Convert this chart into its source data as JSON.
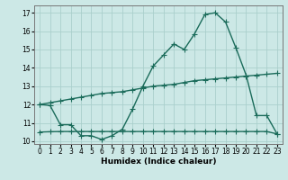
{
  "x": [
    0,
    1,
    2,
    3,
    4,
    5,
    6,
    7,
    8,
    9,
    10,
    11,
    12,
    13,
    14,
    15,
    16,
    17,
    18,
    19,
    20,
    21,
    22,
    23
  ],
  "y_curve": [
    12.0,
    11.95,
    10.9,
    10.9,
    10.3,
    10.3,
    10.1,
    10.3,
    10.65,
    11.75,
    13.0,
    14.1,
    14.7,
    15.3,
    15.0,
    15.85,
    16.9,
    17.0,
    16.5,
    15.1,
    13.6,
    11.4,
    11.4,
    10.4
  ],
  "y_line_upper": [
    12.0,
    12.1,
    12.2,
    12.3,
    12.4,
    12.5,
    12.6,
    12.65,
    12.7,
    12.8,
    12.9,
    13.0,
    13.05,
    13.1,
    13.2,
    13.3,
    13.35,
    13.4,
    13.45,
    13.5,
    13.55,
    13.6,
    13.65,
    13.7
  ],
  "y_line_lower": [
    10.5,
    10.52,
    10.53,
    10.53,
    10.53,
    10.53,
    10.53,
    10.53,
    10.53,
    10.53,
    10.53,
    10.53,
    10.53,
    10.53,
    10.53,
    10.53,
    10.53,
    10.53,
    10.53,
    10.53,
    10.53,
    10.53,
    10.53,
    10.4
  ],
  "color": "#1a6b5a",
  "bg_color": "#cce8e6",
  "grid_color": "#aacfcc",
  "xlabel": "Humidex (Indice chaleur)",
  "ylim": [
    9.85,
    17.4
  ],
  "xlim": [
    -0.5,
    23.5
  ],
  "yticks": [
    10,
    11,
    12,
    13,
    14,
    15,
    16,
    17
  ],
  "xtick_labels": [
    "0",
    "1",
    "2",
    "3",
    "4",
    "5",
    "6",
    "7",
    "8",
    "9",
    "10",
    "11",
    "12",
    "13",
    "14",
    "15",
    "16",
    "17",
    "18",
    "19",
    "20",
    "21",
    "22",
    "23"
  ],
  "marker": "+",
  "markersize": 4,
  "linewidth": 1.0,
  "tick_fontsize": 5.5,
  "xlabel_fontsize": 6.5
}
